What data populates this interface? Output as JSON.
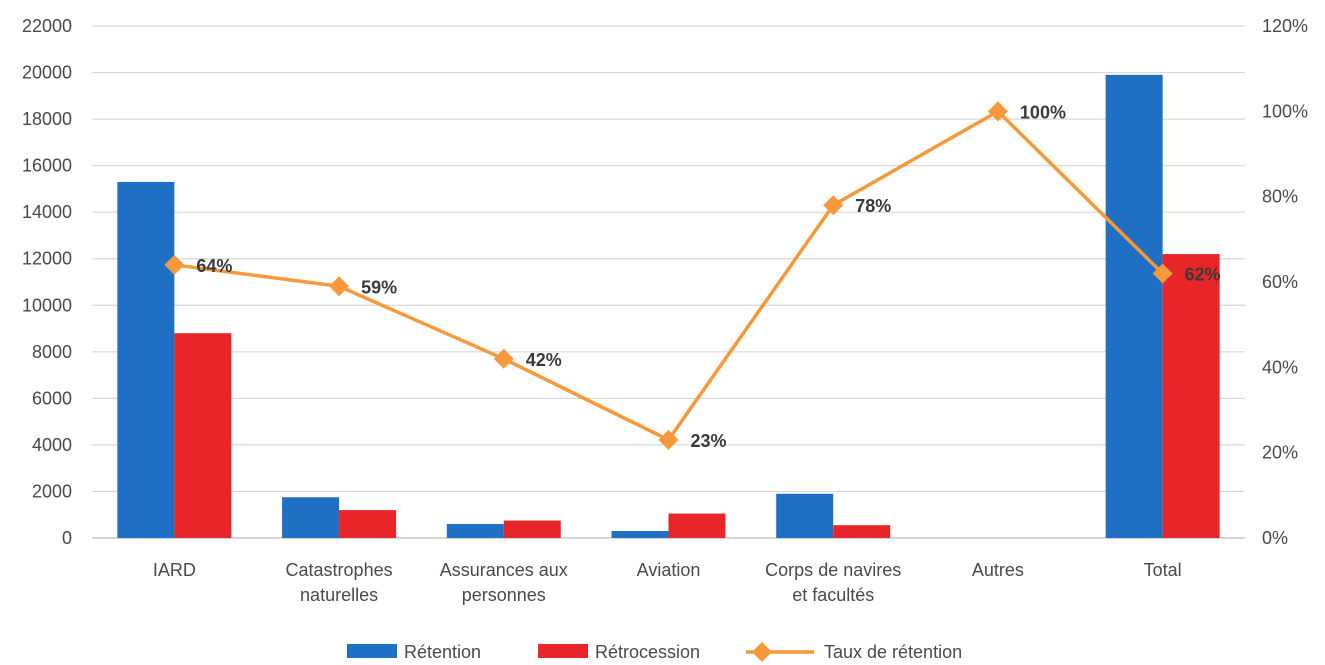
{
  "chart_data": {
    "type": "bar",
    "categories": [
      [
        "IARD"
      ],
      [
        "Catastrophes",
        "naturelles"
      ],
      [
        "Assurances aux",
        "personnes"
      ],
      [
        "Aviation"
      ],
      [
        "Corps de navires",
        "et facultés"
      ],
      [
        "Autres"
      ],
      [
        "Total"
      ]
    ],
    "series": [
      {
        "name": "Rétention",
        "kind": "bar",
        "axis": "left",
        "color": "#1f6fc5",
        "values": [
          15300,
          1750,
          600,
          300,
          1900,
          0,
          19900
        ]
      },
      {
        "name": "Rétrocession",
        "kind": "bar",
        "axis": "left",
        "color": "#e8262a",
        "values": [
          8800,
          1200,
          750,
          1050,
          550,
          0,
          12200
        ]
      },
      {
        "name": "Taux de rétention",
        "kind": "line",
        "axis": "right",
        "color": "#f7993b",
        "values": [
          64,
          59,
          42,
          23,
          78,
          100,
          62
        ],
        "labels": [
          "64%",
          "59%",
          "42%",
          "23%",
          "78%",
          "100%",
          "62%"
        ]
      }
    ],
    "y_left": {
      "ylim": [
        0,
        22000
      ],
      "ticks": [
        0,
        2000,
        4000,
        6000,
        8000,
        10000,
        12000,
        14000,
        16000,
        18000,
        20000,
        22000
      ],
      "tick_labels": [
        "0",
        "2000",
        "4000",
        "6000",
        "8000",
        "10000",
        "12000",
        "14000",
        "16000",
        "18000",
        "20000",
        "22000"
      ]
    },
    "y_right": {
      "ylim": [
        0,
        120
      ],
      "ticks": [
        0,
        20,
        40,
        60,
        80,
        100,
        120
      ],
      "tick_labels": [
        "0%",
        "20%",
        "40%",
        "60%",
        "80%",
        "100%",
        "120%"
      ]
    },
    "grid": true,
    "legend": {
      "position": "bottom",
      "entries": [
        "Rétention",
        "Rétrocession",
        "Taux de rétention"
      ]
    },
    "colors": {
      "grid": "#d9d9d9",
      "axis_text": "#4a4a4a",
      "line": "#f7993b"
    }
  }
}
